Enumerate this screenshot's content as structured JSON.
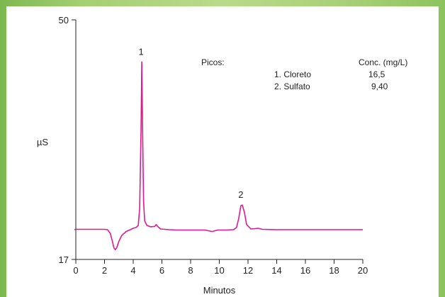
{
  "chart_data": {
    "type": "line",
    "xlabel": "Minutos",
    "ylabel": "µS",
    "xlim": [
      0,
      20
    ],
    "ylim": [
      17,
      50
    ],
    "x_ticks": [
      "0",
      "2",
      "4",
      "6",
      "8",
      "10",
      "12",
      "14",
      "16",
      "18",
      "20"
    ],
    "y_ticks": [
      "17",
      "50"
    ],
    "grid": false,
    "line_color": "#e0198c",
    "series": [
      {
        "x": [
          -0.1,
          0,
          0.5,
          1,
          1.5,
          2,
          2.2,
          2.4,
          2.55,
          2.65,
          2.75,
          2.85,
          3.0,
          3.2,
          3.5,
          3.8,
          4.0,
          4.2,
          4.35,
          4.45,
          4.55,
          4.6,
          4.65,
          4.72,
          4.8,
          4.95,
          5.2,
          5.5,
          5.6,
          5.7,
          5.9,
          6.5,
          7,
          8,
          9,
          9.5,
          9.7,
          9.9,
          10.5,
          11,
          11.2,
          11.35,
          11.5,
          11.6,
          11.75,
          11.9,
          12.2,
          12.5,
          12.7,
          13,
          14,
          15,
          16,
          17,
          18,
          19,
          20
        ],
        "y": [
          21.1,
          21.15,
          21.15,
          21.15,
          21.15,
          21.15,
          21.1,
          20.6,
          19.5,
          18.6,
          18.35,
          18.6,
          19.5,
          20.3,
          20.85,
          21.1,
          21.3,
          21.4,
          21.7,
          24,
          35,
          44.2,
          35,
          25,
          22.3,
          21.7,
          21.5,
          21.55,
          21.8,
          21.55,
          21.2,
          21.1,
          21.05,
          21.05,
          21.05,
          20.85,
          20.95,
          21.05,
          21.05,
          21.1,
          21.4,
          22.6,
          24.4,
          24.5,
          23.5,
          21.8,
          21.2,
          21.25,
          21.3,
          21.15,
          21.1,
          21.1,
          21.1,
          21.1,
          21.1,
          21.1,
          21.1
        ]
      }
    ],
    "peak_labels": [
      {
        "text": "1",
        "x": 4.55,
        "y": 44.2
      },
      {
        "text": "2",
        "x": 11.5,
        "y": 24.5
      }
    ],
    "legend": {
      "title": "Picos:",
      "value_header": "Conc. (mg/L)",
      "rows": [
        {
          "name": "1. Cloreto",
          "value": "16,5"
        },
        {
          "name": "2. Sulfato",
          "value": "9,40"
        }
      ]
    }
  }
}
